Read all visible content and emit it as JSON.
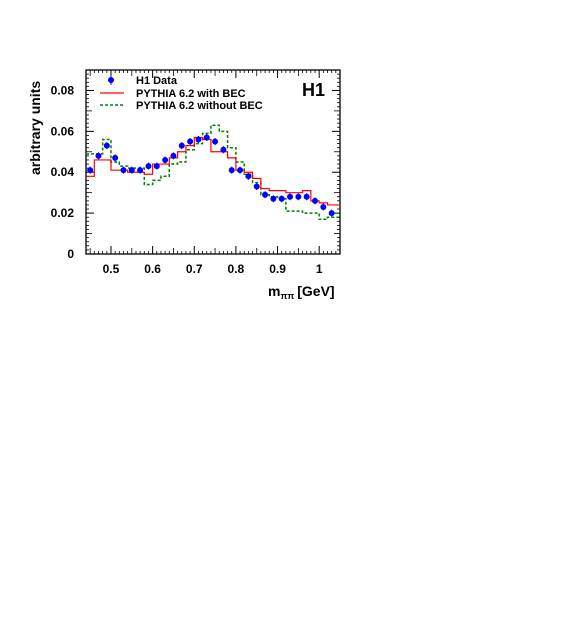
{
  "chart_data": {
    "type": "line",
    "experiment_label": "H1",
    "xlabel_main": "m",
    "xlabel_sub": "ππ",
    "xlabel_unit": "[GeV]",
    "ylabel": "arbitrary units",
    "xlim": [
      0.44,
      1.05
    ],
    "ylim": [
      0,
      0.09
    ],
    "x_ticks": [
      0.5,
      0.6,
      0.7,
      0.8,
      0.9,
      1.0
    ],
    "x_tick_labels": [
      "0.5",
      "0.6",
      "0.7",
      "0.8",
      "0.9",
      "1"
    ],
    "y_ticks": [
      0,
      0.02,
      0.04,
      0.06,
      0.08
    ],
    "y_tick_labels": [
      "0",
      "0.02",
      "0.04",
      "0.06",
      "0.08"
    ],
    "legend_position": "top-left",
    "bin_edges": [
      0.44,
      0.46,
      0.48,
      0.5,
      0.52,
      0.54,
      0.56,
      0.58,
      0.6,
      0.62,
      0.64,
      0.66,
      0.68,
      0.7,
      0.72,
      0.74,
      0.76,
      0.78,
      0.8,
      0.82,
      0.84,
      0.86,
      0.88,
      0.9,
      0.92,
      0.94,
      0.96,
      0.98,
      1.0,
      1.02,
      1.05
    ],
    "series": [
      {
        "name": "H1 Data",
        "style": "points",
        "color": "#0000ff",
        "x": [
          0.45,
          0.47,
          0.49,
          0.51,
          0.53,
          0.55,
          0.57,
          0.59,
          0.61,
          0.63,
          0.65,
          0.67,
          0.69,
          0.71,
          0.73,
          0.75,
          0.77,
          0.79,
          0.81,
          0.83,
          0.85,
          0.87,
          0.89,
          0.91,
          0.93,
          0.95,
          0.97,
          0.99,
          1.01,
          1.03
        ],
        "y": [
          0.041,
          0.048,
          0.053,
          0.047,
          0.041,
          0.041,
          0.041,
          0.043,
          0.043,
          0.046,
          0.048,
          0.053,
          0.055,
          0.056,
          0.057,
          0.055,
          0.051,
          0.041,
          0.041,
          0.038,
          0.033,
          0.029,
          0.027,
          0.027,
          0.028,
          0.028,
          0.028,
          0.026,
          0.023,
          0.02
        ]
      },
      {
        "name": "PYTHIA 6.2 with BEC",
        "style": "step-solid",
        "color": "#ff0000",
        "values": [
          0.038,
          0.046,
          0.046,
          0.041,
          0.041,
          0.04,
          0.04,
          0.039,
          0.044,
          0.044,
          0.047,
          0.05,
          0.053,
          0.057,
          0.056,
          0.05,
          0.05,
          0.047,
          0.041,
          0.04,
          0.037,
          0.032,
          0.031,
          0.031,
          0.03,
          0.03,
          0.031,
          0.026,
          0.025,
          0.024
        ]
      },
      {
        "name": "PYTHIA 6.2 without BEC",
        "style": "step-dashed",
        "color": "#008000",
        "values": [
          0.049,
          0.049,
          0.056,
          0.045,
          0.043,
          0.042,
          0.042,
          0.034,
          0.036,
          0.038,
          0.044,
          0.045,
          0.051,
          0.054,
          0.059,
          0.063,
          0.06,
          0.052,
          0.045,
          0.039,
          0.035,
          0.029,
          0.028,
          0.027,
          0.021,
          0.021,
          0.02,
          0.02,
          0.017,
          0.018
        ]
      }
    ]
  }
}
